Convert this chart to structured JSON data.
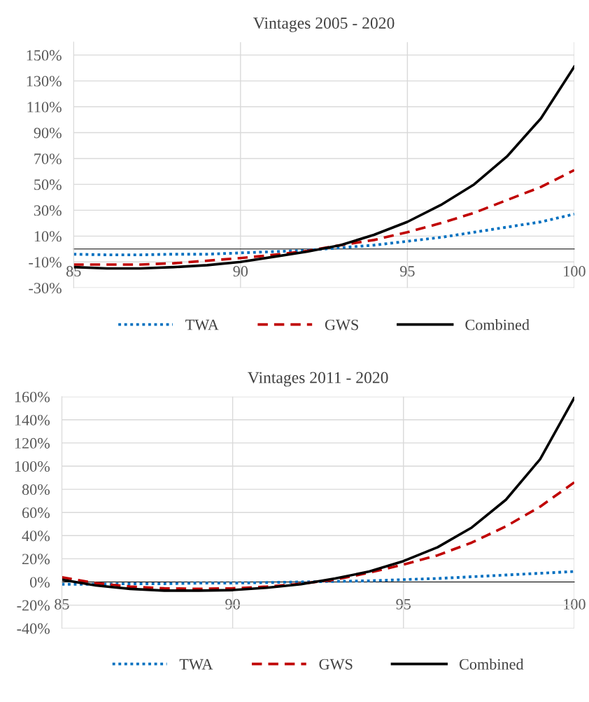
{
  "chart_data": [
    {
      "type": "line",
      "title": "Vintages 2005 - 2020",
      "x": [
        85,
        86,
        87,
        88,
        89,
        90,
        91,
        92,
        93,
        94,
        95,
        96,
        97,
        98,
        99,
        100
      ],
      "xlim": [
        85,
        100
      ],
      "xticks": [
        85,
        90,
        95,
        100
      ],
      "ylim": [
        -30,
        160
      ],
      "yticks": [
        {
          "value": -30,
          "label": "-30%"
        },
        {
          "value": -10,
          "label": "-10%"
        },
        {
          "value": 10,
          "label": "10%"
        },
        {
          "value": 30,
          "label": "30%"
        },
        {
          "value": 50,
          "label": "50%"
        },
        {
          "value": 70,
          "label": "70%"
        },
        {
          "value": 90,
          "label": "90%"
        },
        {
          "value": 110,
          "label": "110%"
        },
        {
          "value": 130,
          "label": "130%"
        },
        {
          "value": 150,
          "label": "150%"
        }
      ],
      "grid": true,
      "legend": "bottom",
      "series": [
        {
          "name": "TWA",
          "color": "#0070c0",
          "line_style": "dotted",
          "values": [
            -4,
            -4.5,
            -4.5,
            -4,
            -4,
            -3,
            -2,
            -1,
            1,
            3,
            6,
            9,
            13,
            17,
            21,
            27
          ]
        },
        {
          "name": "GWS",
          "color": "#c00000",
          "line_style": "dashed",
          "values": [
            -12,
            -12,
            -12,
            -11,
            -9,
            -7,
            -4.5,
            -1.5,
            3,
            7,
            13,
            20,
            28,
            38,
            48,
            61
          ]
        },
        {
          "name": "Combined",
          "color": "#000000",
          "line_style": "solid",
          "values": [
            -14,
            -15,
            -15,
            -14,
            -12.5,
            -10,
            -6,
            -2,
            3,
            11,
            21,
            34,
            50,
            72,
            101,
            141
          ]
        }
      ]
    },
    {
      "type": "line",
      "title": "Vintages 2011 - 2020",
      "x": [
        85,
        86,
        87,
        88,
        89,
        90,
        91,
        92,
        93,
        94,
        95,
        96,
        97,
        98,
        99,
        100
      ],
      "xlim": [
        85,
        100
      ],
      "xticks": [
        85,
        90,
        95,
        100
      ],
      "ylim": [
        -40,
        160
      ],
      "yticks": [
        {
          "value": -40,
          "label": "-40%"
        },
        {
          "value": -20,
          "label": "-20%"
        },
        {
          "value": 0,
          "label": "0%"
        },
        {
          "value": 20,
          "label": "20%"
        },
        {
          "value": 40,
          "label": "40%"
        },
        {
          "value": 60,
          "label": "60%"
        },
        {
          "value": 80,
          "label": "80%"
        },
        {
          "value": 100,
          "label": "100%"
        },
        {
          "value": 120,
          "label": "120%"
        },
        {
          "value": 140,
          "label": "140%"
        },
        {
          "value": 160,
          "label": "160%"
        }
      ],
      "grid": true,
      "legend": "bottom",
      "series": [
        {
          "name": "TWA",
          "color": "#0070c0",
          "line_style": "dotted",
          "values": [
            -2,
            -2,
            -1.5,
            -1.5,
            -1,
            -1,
            -0.5,
            0,
            0.5,
            1,
            2,
            3,
            4.5,
            6,
            7.5,
            9
          ]
        },
        {
          "name": "GWS",
          "color": "#c00000",
          "line_style": "dashed",
          "values": [
            4,
            -1,
            -4,
            -5.5,
            -6,
            -5.5,
            -4,
            -1.5,
            2,
            8,
            15,
            23,
            34,
            48,
            65,
            86
          ]
        },
        {
          "name": "Combined",
          "color": "#000000",
          "line_style": "solid",
          "values": [
            2,
            -3,
            -6,
            -7.5,
            -7.5,
            -7,
            -5,
            -2,
            3,
            9,
            18,
            30,
            47,
            71,
            106,
            159
          ]
        }
      ]
    }
  ]
}
